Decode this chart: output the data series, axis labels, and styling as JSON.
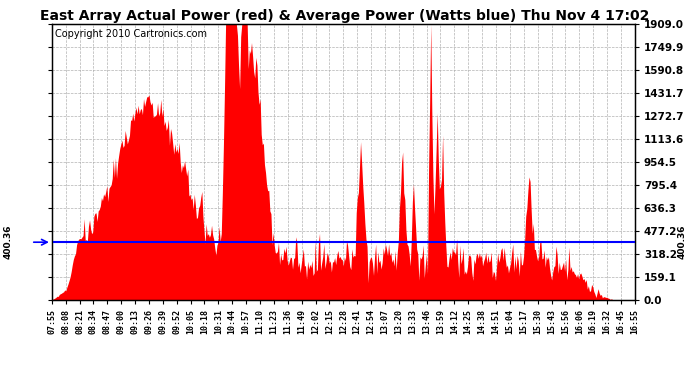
{
  "title": "East Array Actual Power (red) & Average Power (Watts blue) Thu Nov 4 17:02",
  "copyright": "Copyright 2010 Cartronics.com",
  "avg_power": 400.36,
  "ymax": 1909.0,
  "ymin": 0.0,
  "ytick_values": [
    0.0,
    159.1,
    318.2,
    477.2,
    636.3,
    795.4,
    954.5,
    1113.6,
    1272.7,
    1431.7,
    1590.8,
    1749.9,
    1909.0
  ],
  "xtick_labels": [
    "07:55",
    "08:08",
    "08:21",
    "08:34",
    "08:47",
    "09:00",
    "09:13",
    "09:26",
    "09:39",
    "09:52",
    "10:05",
    "10:18",
    "10:31",
    "10:44",
    "10:57",
    "11:10",
    "11:23",
    "11:36",
    "11:49",
    "12:02",
    "12:15",
    "12:28",
    "12:41",
    "12:54",
    "13:07",
    "13:20",
    "13:33",
    "13:46",
    "13:59",
    "14:12",
    "14:25",
    "14:38",
    "14:51",
    "15:04",
    "15:17",
    "15:30",
    "15:43",
    "15:56",
    "16:06",
    "16:19",
    "16:32",
    "16:45",
    "16:55"
  ],
  "title_fontsize": 10,
  "copyright_fontsize": 7,
  "tick_fontsize": 7.5,
  "xtick_fontsize": 6,
  "line_color": "#0000FF",
  "fill_color": "#FF0000",
  "background_color": "#FFFFFF",
  "grid_color": "#AAAAAA",
  "avg_label": "400.36"
}
